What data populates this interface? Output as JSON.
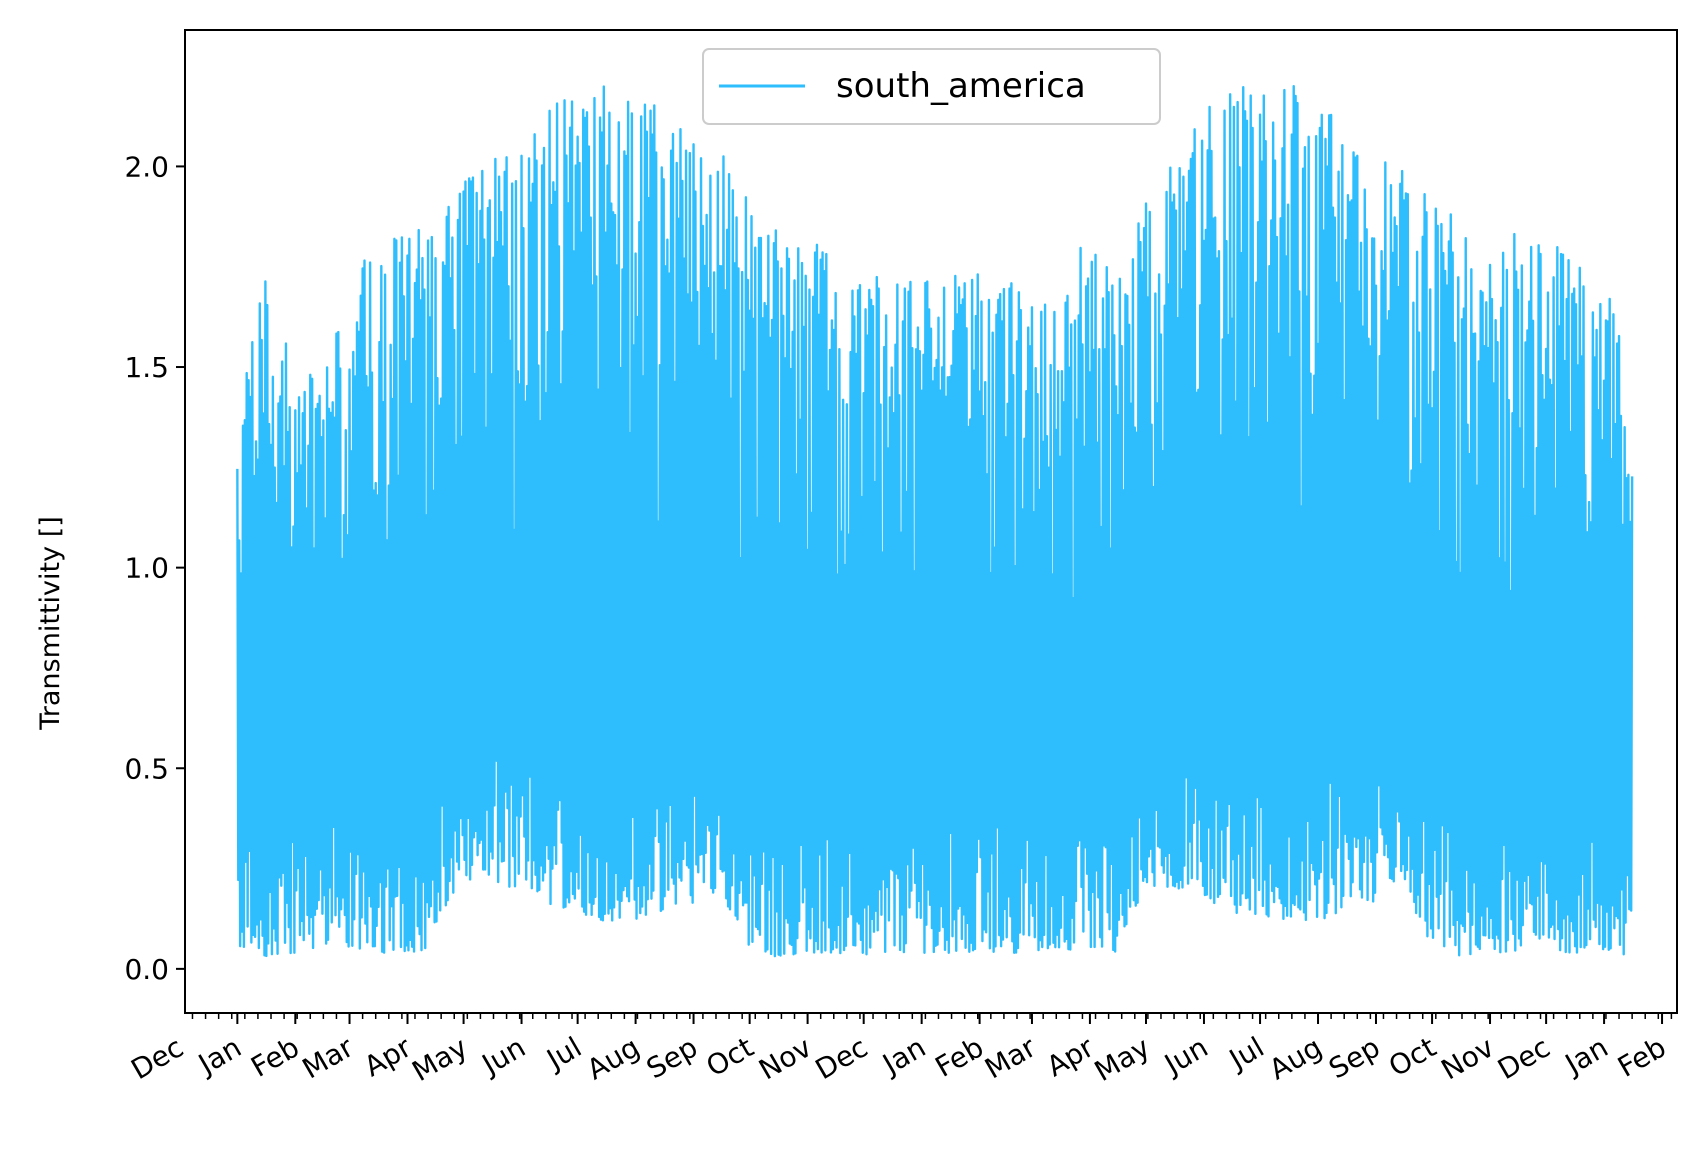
{
  "chart_data": {
    "type": "line",
    "title": "",
    "xlabel": "",
    "ylabel": "Transmittivity []",
    "ylim": [
      -0.11,
      2.34
    ],
    "yticks": [
      0.0,
      0.5,
      1.0,
      1.5,
      2.0
    ],
    "ytick_labels": [
      "0.0",
      "0.5",
      "1.0",
      "1.5",
      "2.0"
    ],
    "xlim": [
      "2019-12-04",
      "2022-02-09"
    ],
    "grid": false,
    "legend": {
      "position": "top-center",
      "entries": [
        "south_america"
      ]
    },
    "x_tick_labels": [
      {
        "date": "2019-12-01",
        "label": "Dec"
      },
      {
        "date": "2020-01-01",
        "label": "Jan"
      },
      {
        "date": "2020-02-01",
        "label": "Feb"
      },
      {
        "date": "2020-03-01",
        "label": "Mar"
      },
      {
        "date": "2020-04-01",
        "label": "Apr"
      },
      {
        "date": "2020-05-01",
        "label": "May"
      },
      {
        "date": "2020-06-01",
        "label": "Jun"
      },
      {
        "date": "2020-07-01",
        "label": "Jul"
      },
      {
        "date": "2020-08-01",
        "label": "Aug"
      },
      {
        "date": "2020-09-01",
        "label": "Sep"
      },
      {
        "date": "2020-10-01",
        "label": "Oct"
      },
      {
        "date": "2020-11-01",
        "label": "Nov"
      },
      {
        "date": "2020-12-01",
        "label": "Dec"
      },
      {
        "date": "2021-01-01",
        "label": "Jan"
      },
      {
        "date": "2021-02-01",
        "label": "Feb"
      },
      {
        "date": "2021-03-01",
        "label": "Mar"
      },
      {
        "date": "2021-04-01",
        "label": "Apr"
      },
      {
        "date": "2021-05-01",
        "label": "May"
      },
      {
        "date": "2021-06-01",
        "label": "Jun"
      },
      {
        "date": "2021-07-01",
        "label": "Jul"
      },
      {
        "date": "2021-08-01",
        "label": "Aug"
      },
      {
        "date": "2021-09-01",
        "label": "Sep"
      },
      {
        "date": "2021-10-01",
        "label": "Oct"
      },
      {
        "date": "2021-11-01",
        "label": "Nov"
      },
      {
        "date": "2021-12-01",
        "label": "Dec"
      },
      {
        "date": "2022-01-01",
        "label": "Jan"
      },
      {
        "date": "2022-02-01",
        "label": "Feb"
      }
    ],
    "series": [
      {
        "name": "south_america",
        "color": "#2ebefd",
        "x": [
          "2020-01-01",
          "2020-01-15",
          "2020-02-01",
          "2020-02-15",
          "2020-03-01",
          "2020-03-15",
          "2020-04-01",
          "2020-04-15",
          "2020-05-01",
          "2020-05-15",
          "2020-06-01",
          "2020-06-15",
          "2020-07-01",
          "2020-07-15",
          "2020-08-01",
          "2020-08-15",
          "2020-09-01",
          "2020-09-15",
          "2020-10-01",
          "2020-10-15",
          "2020-11-01",
          "2020-11-15",
          "2020-12-01",
          "2020-12-15",
          "2021-01-01",
          "2021-01-15",
          "2021-02-01",
          "2021-02-15",
          "2021-03-01",
          "2021-03-15",
          "2021-04-01",
          "2021-04-15",
          "2021-05-01",
          "2021-05-15",
          "2021-06-01",
          "2021-06-15",
          "2021-07-01",
          "2021-07-15",
          "2021-08-01",
          "2021-08-15",
          "2021-09-01",
          "2021-09-15",
          "2021-10-01",
          "2021-10-15",
          "2021-11-01",
          "2021-11-15",
          "2021-12-01",
          "2021-12-15",
          "2022-01-01",
          "2022-01-16"
        ],
        "upper": [
          1.4,
          1.76,
          1.5,
          1.47,
          1.71,
          1.82,
          1.85,
          1.84,
          1.96,
          2.02,
          2.1,
          2.16,
          2.17,
          2.2,
          2.16,
          2.15,
          2.06,
          2.05,
          1.93,
          1.85,
          1.83,
          1.77,
          1.74,
          1.71,
          1.76,
          1.74,
          1.74,
          1.72,
          1.68,
          1.65,
          1.86,
          1.7,
          1.95,
          2.03,
          2.15,
          2.18,
          2.22,
          2.21,
          2.17,
          2.1,
          2.05,
          2.0,
          1.94,
          1.87,
          1.76,
          1.84,
          1.83,
          1.76,
          1.77,
          1.42
        ],
        "lower": [
          0.0,
          0.03,
          0.04,
          0.05,
          0.05,
          0.04,
          0.04,
          0.05,
          0.22,
          0.21,
          0.2,
          0.16,
          0.14,
          0.12,
          0.12,
          0.13,
          0.16,
          0.2,
          0.04,
          0.03,
          0.04,
          0.04,
          0.03,
          0.04,
          0.04,
          0.04,
          0.04,
          0.04,
          0.04,
          0.05,
          0.04,
          0.04,
          0.21,
          0.2,
          0.18,
          0.14,
          0.13,
          0.12,
          0.12,
          0.14,
          0.17,
          0.21,
          0.04,
          0.03,
          0.04,
          0.04,
          0.04,
          0.04,
          0.04,
          0.03
        ]
      }
    ]
  }
}
